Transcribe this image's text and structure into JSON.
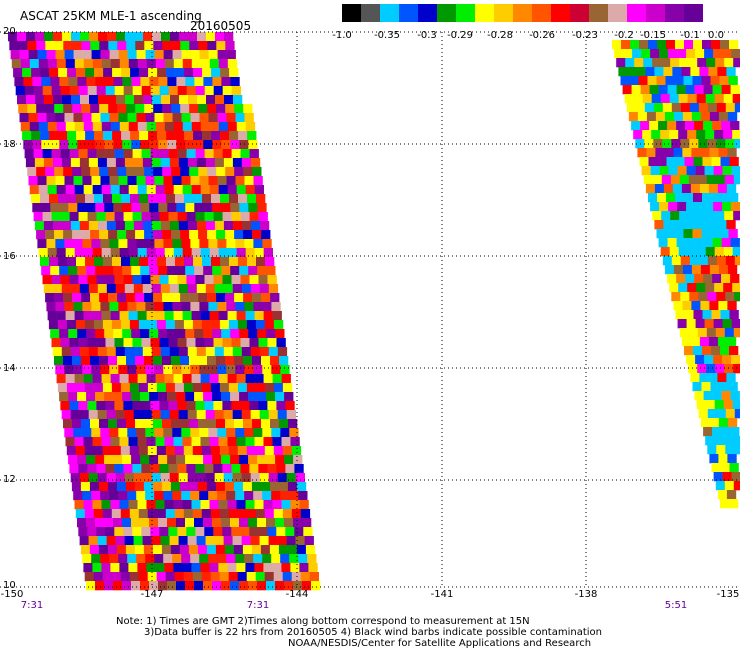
{
  "title": "ASCAT 25KM MLE-1 ascending",
  "date": "20160505",
  "colorbar": {
    "colors": [
      "#000000",
      "#555555",
      "#00ccff",
      "#0055ff",
      "#0000cc",
      "#009900",
      "#00ee00",
      "#ffff00",
      "#ffcc00",
      "#ff8800",
      "#ff5500",
      "#ff0000",
      "#cc0033",
      "#996633",
      "#ddaaaa",
      "#ff00ff",
      "#cc00cc",
      "#8800aa",
      "#660099"
    ],
    "labels": [
      "-1.0",
      "-0.35",
      "-0.3",
      "-0.29",
      "-0.28",
      "-0.26",
      "-0.23",
      "-0.2",
      "-0.15",
      "-0.1",
      "0.0"
    ]
  },
  "y_ticks": [
    "20",
    "18",
    "16",
    "14",
    "12",
    "10"
  ],
  "x_ticks": [
    "-150",
    "-147",
    "-144",
    "-141",
    "-138",
    "-135"
  ],
  "time_labels": [
    "7:31",
    "7:31",
    "5:51"
  ],
  "notes": [
    "Note: 1) Times are GMT 2)Times along bottom correspond to measurement at 15N",
    "3)Data buffer is 22 hrs from 20160505 4) Black wind barbs indicate possible contamination",
    "NOAA/NESDIS/Center for Satellite Applications and Research"
  ],
  "chart_data": {
    "type": "heatmap",
    "title": "ASCAT 25KM MLE-1 ascending",
    "subtitle": "20160505",
    "xlim": [
      -150,
      -135
    ],
    "ylim": [
      10,
      20
    ],
    "colorbar_range": [
      -1.0,
      0.0
    ],
    "grid": true
  }
}
